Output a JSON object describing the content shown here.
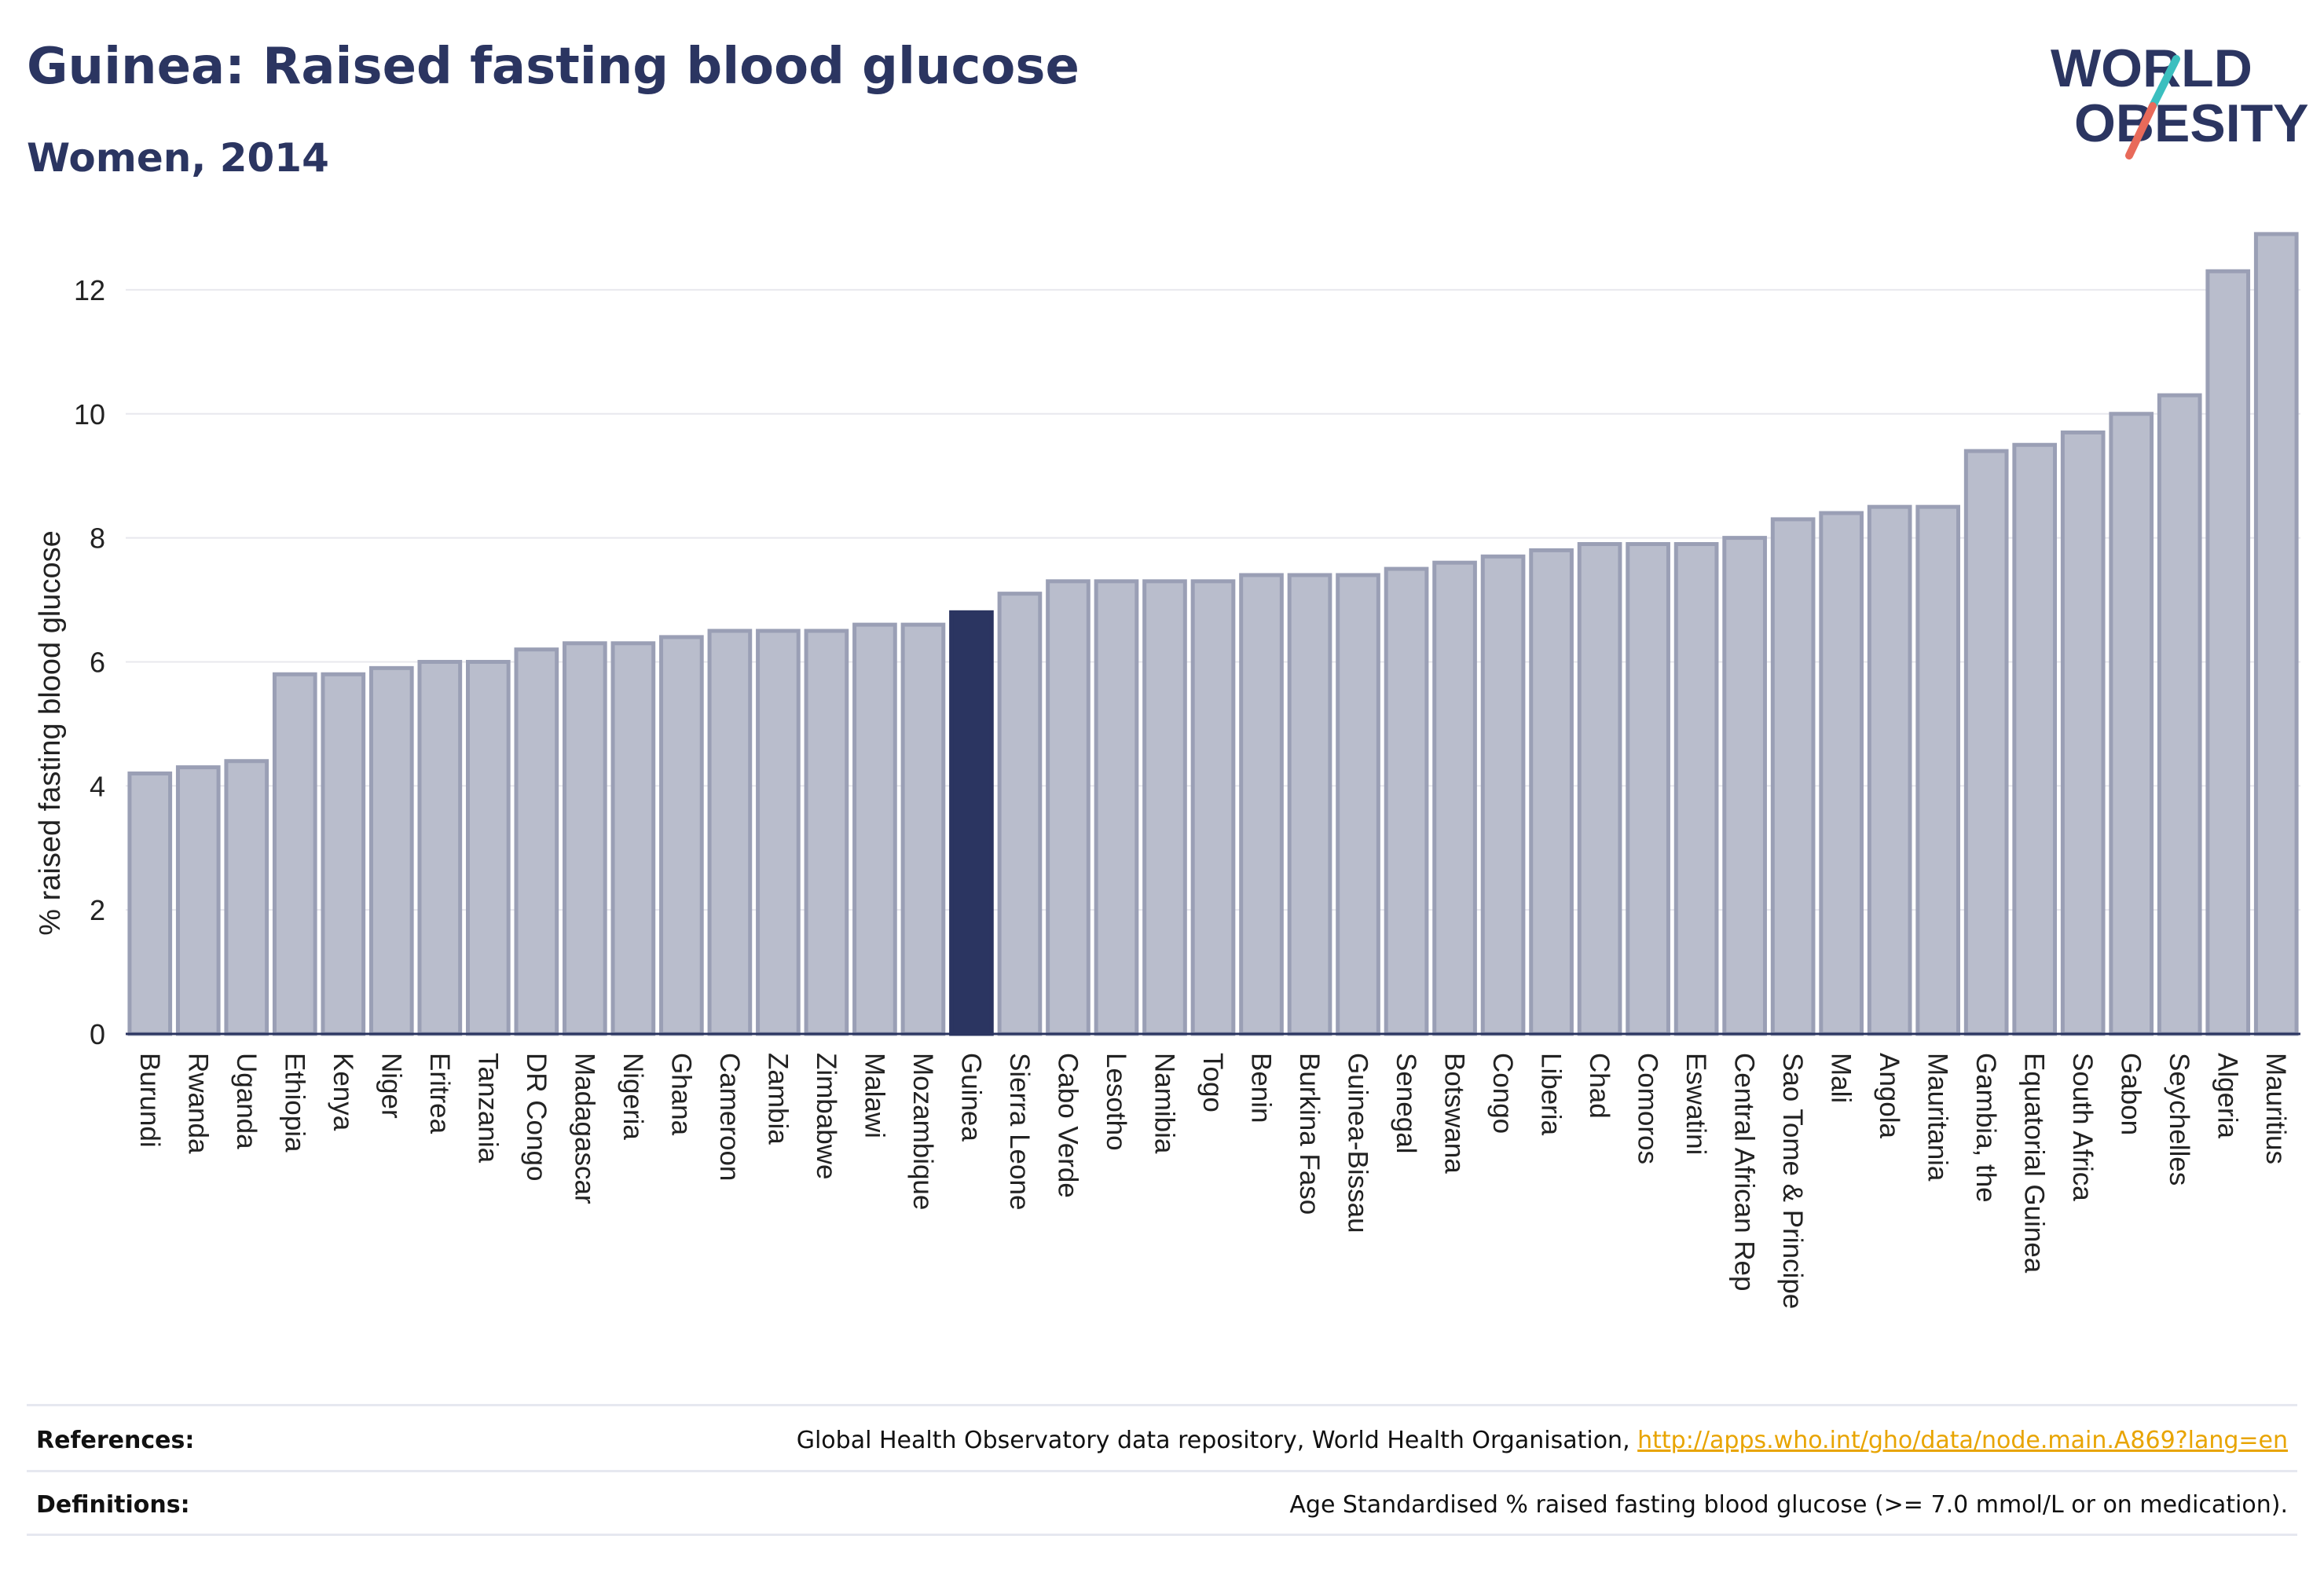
{
  "title": "Guinea: Raised fasting blood glucose",
  "subtitle": "Women, 2014",
  "logo": {
    "line1": "WORLD",
    "line2": "OBESITY",
    "brand_color": "#2b3561",
    "slash_colors": [
      "#3bbfbf",
      "#e86a5a"
    ]
  },
  "colors": {
    "bar_fill": "#b9bdcc",
    "bar_stroke": "#9a9fb5",
    "highlight": "#2b3561",
    "grid": "#e8e8ee",
    "link": "#e8a400"
  },
  "chart_data": {
    "type": "bar",
    "ylabel": "% raised fasting blood glucose",
    "xlabel": "",
    "ylim": [
      0,
      13
    ],
    "yticks": [
      0,
      2,
      4,
      6,
      8,
      10,
      12
    ],
    "grid": true,
    "highlight": "Guinea",
    "categories": [
      "Burundi",
      "Rwanda",
      "Uganda",
      "Ethiopia",
      "Kenya",
      "Niger",
      "Eritrea",
      "Tanzania",
      "DR Congo",
      "Madagascar",
      "Nigeria",
      "Ghana",
      "Cameroon",
      "Zambia",
      "Zimbabwe",
      "Malawi",
      "Mozambique",
      "Guinea",
      "Sierra Leone",
      "Cabo Verde",
      "Lesotho",
      "Namibia",
      "Togo",
      "Benin",
      "Burkina Faso",
      "Guinea-Bissau",
      "Senegal",
      "Botswana",
      "Congo",
      "Liberia",
      "Chad",
      "Comoros",
      "Eswatini",
      "Central African Rep",
      "Sao Tome & Principe",
      "Mali",
      "Angola",
      "Mauritania",
      "Gambia, the",
      "Equatorial Guinea",
      "South Africa",
      "Gabon",
      "Seychelles",
      "Algeria",
      "Mauritius"
    ],
    "values": [
      4.2,
      4.3,
      4.4,
      5.8,
      5.8,
      5.9,
      6.0,
      6.0,
      6.2,
      6.3,
      6.3,
      6.4,
      6.5,
      6.5,
      6.5,
      6.6,
      6.6,
      6.8,
      7.1,
      7.3,
      7.3,
      7.3,
      7.3,
      7.4,
      7.4,
      7.4,
      7.5,
      7.6,
      7.7,
      7.8,
      7.9,
      7.9,
      7.9,
      8.0,
      8.3,
      8.4,
      8.5,
      8.5,
      9.4,
      9.5,
      9.7,
      10.0,
      10.3,
      12.3,
      12.9
    ]
  },
  "footer": {
    "references_label": "References:",
    "references_text": "Global Health Observatory data repository, World Health Organisation, ",
    "references_link": "http://apps.who.int/gho/data/node.main.A869?lang=en",
    "definitions_label": "Definitions:",
    "definitions_text": "Age Standardised % raised fasting blood glucose (>= 7.0 mmol/L or on medication)."
  }
}
